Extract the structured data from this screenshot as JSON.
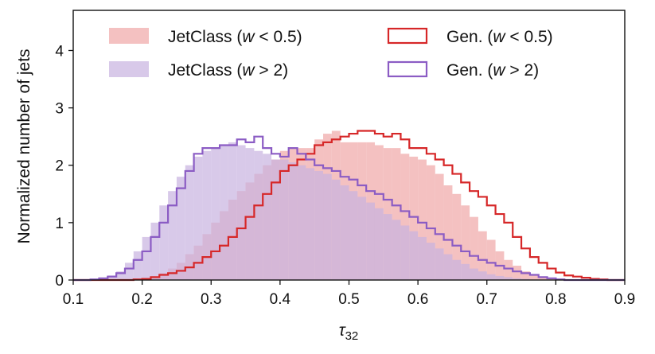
{
  "chart_data": {
    "type": "histogram",
    "title": "",
    "xlabel": "τ",
    "xlabel_subscript": "32",
    "ylabel": "Normalized number of jets",
    "xlim": [
      0.1,
      0.9
    ],
    "ylim": [
      0,
      4.7
    ],
    "xticks": [
      0.1,
      0.2,
      0.3,
      0.4,
      0.5,
      0.6,
      0.7,
      0.8,
      0.9
    ],
    "yticks": [
      0,
      1,
      2,
      3,
      4
    ],
    "bin_start": 0.1,
    "bin_width": 0.0125,
    "legend": {
      "position": "top",
      "entries": [
        {
          "pre": "JetClass (",
          "var": "w",
          "post": " < 0.5)"
        },
        {
          "pre": "Gen. (",
          "var": "w",
          "post": " < 0.5)"
        },
        {
          "pre": "JetClass (",
          "var": "w",
          "post": " > 2)"
        },
        {
          "pre": "Gen. (",
          "var": "w",
          "post": " > 2)"
        }
      ]
    },
    "colors": {
      "low_fill": "#f0a6a6",
      "low_fill_opacity": 0.7,
      "low_line": "#d62728",
      "high_fill": "#c8b2e0",
      "high_fill_opacity": 0.7,
      "high_line": "#8b5cc4"
    },
    "series": [
      {
        "name": "JetClass (w < 0.5)",
        "style": "filled",
        "values": [
          0,
          0,
          0,
          0,
          0,
          0,
          0.01,
          0.02,
          0.03,
          0.06,
          0.12,
          0.2,
          0.3,
          0.45,
          0.6,
          0.8,
          1.0,
          1.2,
          1.4,
          1.55,
          1.7,
          1.85,
          2.0,
          2.1,
          2.25,
          2.3,
          2.3,
          2.3,
          2.45,
          2.55,
          2.6,
          2.4,
          2.4,
          2.4,
          2.4,
          2.35,
          2.3,
          2.3,
          2.2,
          2.15,
          2.1,
          2.0,
          1.85,
          1.65,
          1.5,
          1.3,
          1.1,
          0.85,
          0.7,
          0.5,
          0.35,
          0.25,
          0.15,
          0.08,
          0.05,
          0.02,
          0,
          0,
          0,
          0,
          0,
          0,
          0,
          0
        ]
      },
      {
        "name": "Gen. (w < 0.5)",
        "style": "step",
        "values": [
          0,
          0,
          0,
          0,
          0,
          0,
          0,
          0.01,
          0.02,
          0.05,
          0.09,
          0.12,
          0.16,
          0.22,
          0.3,
          0.4,
          0.5,
          0.6,
          0.75,
          0.9,
          1.1,
          1.3,
          1.5,
          1.7,
          1.9,
          2.0,
          2.1,
          2.2,
          2.35,
          2.4,
          2.45,
          2.5,
          2.55,
          2.6,
          2.6,
          2.55,
          2.5,
          2.55,
          2.45,
          2.3,
          2.3,
          2.2,
          2.1,
          2.0,
          1.85,
          1.7,
          1.55,
          1.45,
          1.3,
          1.15,
          1.0,
          0.75,
          0.55,
          0.4,
          0.3,
          0.2,
          0.13,
          0.08,
          0.06,
          0.04,
          0.02,
          0.01,
          0,
          0
        ]
      },
      {
        "name": "JetClass (w > 2)",
        "style": "filled",
        "values": [
          0,
          0,
          0.01,
          0.03,
          0.08,
          0.15,
          0.3,
          0.5,
          0.75,
          1.0,
          1.3,
          1.55,
          1.8,
          2.0,
          2.15,
          2.25,
          2.3,
          2.35,
          2.4,
          2.35,
          2.3,
          2.25,
          2.2,
          2.1,
          2.1,
          2.05,
          2.0,
          1.95,
          1.9,
          1.85,
          1.75,
          1.65,
          1.55,
          1.45,
          1.35,
          1.25,
          1.15,
          1.05,
          0.95,
          0.85,
          0.75,
          0.65,
          0.55,
          0.45,
          0.35,
          0.28,
          0.2,
          0.15,
          0.1,
          0.07,
          0.05,
          0.03,
          0.02,
          0,
          0,
          0,
          0,
          0,
          0,
          0,
          0,
          0,
          0,
          0
        ]
      },
      {
        "name": "Gen. (w > 2)",
        "style": "step",
        "values": [
          0,
          0,
          0.01,
          0.03,
          0.06,
          0.12,
          0.2,
          0.35,
          0.5,
          0.75,
          1.0,
          1.3,
          1.6,
          1.9,
          2.2,
          2.3,
          2.3,
          2.35,
          2.35,
          2.45,
          2.4,
          2.5,
          2.3,
          2.2,
          2.15,
          2.3,
          2.2,
          2.1,
          2.0,
          1.95,
          1.9,
          1.8,
          1.75,
          1.65,
          1.55,
          1.5,
          1.4,
          1.3,
          1.2,
          1.1,
          1.0,
          0.9,
          0.8,
          0.7,
          0.6,
          0.5,
          0.42,
          0.35,
          0.3,
          0.25,
          0.2,
          0.15,
          0.12,
          0.09,
          0.05,
          0.03,
          0.01,
          0,
          0,
          0,
          0,
          0,
          0,
          0
        ]
      }
    ]
  }
}
